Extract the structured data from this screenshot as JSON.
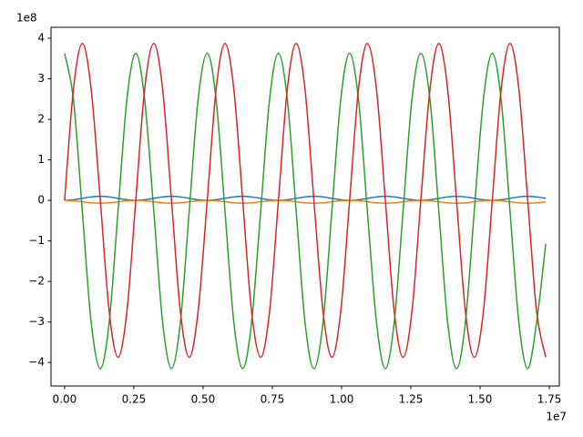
{
  "chart_data": {
    "type": "line",
    "y_offset_label": "1e8",
    "x_offset_label": "1e7",
    "x": [
      0,
      0.032,
      0.064,
      0.096,
      0.129,
      0.161,
      0.193,
      0.225,
      0.257,
      0.289,
      0.322,
      0.354,
      0.386,
      0.418,
      0.45,
      0.482,
      0.515,
      0.547,
      0.579,
      0.611,
      0.643,
      0.675,
      0.708,
      0.74,
      0.772,
      0.804,
      0.836,
      0.868,
      0.9,
      0.933,
      0.965,
      0.997,
      1.029,
      1.061,
      1.093,
      1.126,
      1.158,
      1.19,
      1.222,
      1.254,
      1.286,
      1.319,
      1.351,
      1.383,
      1.415,
      1.447,
      1.479,
      1.512,
      1.544,
      1.576,
      1.608,
      1.64,
      1.672,
      1.704,
      1.737
    ],
    "series": [
      {
        "color": "#1f77b4",
        "values": [
          0,
          0.015,
          0.05,
          0.085,
          0.1,
          0.085,
          0.05,
          0.015,
          0,
          0.015,
          0.05,
          0.085,
          0.1,
          0.085,
          0.05,
          0.015,
          0,
          0.015,
          0.05,
          0.085,
          0.1,
          0.085,
          0.05,
          0.015,
          0,
          0.015,
          0.05,
          0.085,
          0.1,
          0.085,
          0.05,
          0.015,
          0,
          0.015,
          0.05,
          0.085,
          0.1,
          0.085,
          0.05,
          0.015,
          0,
          0.015,
          0.05,
          0.085,
          0.1,
          0.085,
          0.05,
          0.015,
          0,
          0.015,
          0.05,
          0.085,
          0.1,
          0.085,
          0.05
        ]
      },
      {
        "color": "#ff7f0e",
        "values": [
          0,
          -0.01,
          -0.035,
          -0.06,
          -0.07,
          -0.06,
          -0.035,
          -0.01,
          0,
          -0.01,
          -0.035,
          -0.06,
          -0.07,
          -0.06,
          -0.035,
          -0.01,
          0,
          -0.01,
          -0.035,
          -0.06,
          -0.07,
          -0.06,
          -0.035,
          -0.01,
          0,
          -0.01,
          -0.035,
          -0.06,
          -0.07,
          -0.06,
          -0.035,
          -0.01,
          0,
          -0.01,
          -0.035,
          -0.06,
          -0.07,
          -0.06,
          -0.035,
          -0.01,
          0,
          -0.01,
          -0.035,
          -0.06,
          -0.07,
          -0.06,
          -0.035,
          -0.01,
          0,
          -0.01,
          -0.035,
          -0.06,
          -0.07,
          -0.06,
          -0.035
        ]
      },
      {
        "color": "#2ca02c",
        "values": [
          3.63,
          2.49,
          -0.26,
          -3.01,
          -4.15,
          -3.01,
          -0.26,
          2.49,
          3.63,
          2.49,
          -0.26,
          -3.01,
          -4.15,
          -3.01,
          -0.26,
          2.49,
          3.63,
          2.49,
          -0.26,
          -3.01,
          -4.15,
          -3.01,
          -0.26,
          2.49,
          3.63,
          2.49,
          -0.26,
          -3.01,
          -4.15,
          -3.01,
          -0.26,
          2.49,
          3.63,
          2.49,
          -0.26,
          -3.01,
          -4.15,
          -3.01,
          -0.26,
          2.49,
          3.63,
          2.49,
          -0.26,
          -3.01,
          -4.15,
          -3.01,
          -0.26,
          2.49,
          3.63,
          2.49,
          -0.26,
          -3.01,
          -4.15,
          -3.01,
          -1.07
        ]
      },
      {
        "color": "#d62728",
        "values": [
          0,
          2.74,
          3.87,
          2.74,
          0,
          -2.74,
          -3.87,
          -2.74,
          0,
          2.74,
          3.87,
          2.74,
          0,
          -2.74,
          -3.87,
          -2.74,
          0,
          2.74,
          3.87,
          2.74,
          0,
          -2.74,
          -3.87,
          -2.74,
          0,
          2.74,
          3.87,
          2.74,
          0,
          -2.74,
          -3.87,
          -2.74,
          0,
          2.74,
          3.87,
          2.74,
          0,
          -2.74,
          -3.87,
          -2.74,
          0,
          2.74,
          3.87,
          2.74,
          0,
          -2.74,
          -3.87,
          -2.74,
          0,
          2.74,
          3.87,
          2.74,
          0,
          -2.74,
          -3.87
        ]
      }
    ],
    "xlim": [
      -0.049,
      1.786
    ],
    "ylim": [
      -4.58,
      4.27
    ],
    "xticks": [
      {
        "value": 0,
        "label": "0.00"
      },
      {
        "value": 0.25,
        "label": "0.25"
      },
      {
        "value": 0.5,
        "label": "0.50"
      },
      {
        "value": 0.75,
        "label": "0.75"
      },
      {
        "value": 1,
        "label": "1.00"
      },
      {
        "value": 1.25,
        "label": "1.25"
      },
      {
        "value": 1.5,
        "label": "1.50"
      },
      {
        "value": 1.75,
        "label": "1.75"
      }
    ],
    "yticks": [
      {
        "value": -4,
        "label": "−4"
      },
      {
        "value": -3,
        "label": "−3"
      },
      {
        "value": -2,
        "label": "−2"
      },
      {
        "value": -1,
        "label": "−1"
      },
      0,
      1,
      2,
      3,
      4
    ],
    "grid": false
  }
}
